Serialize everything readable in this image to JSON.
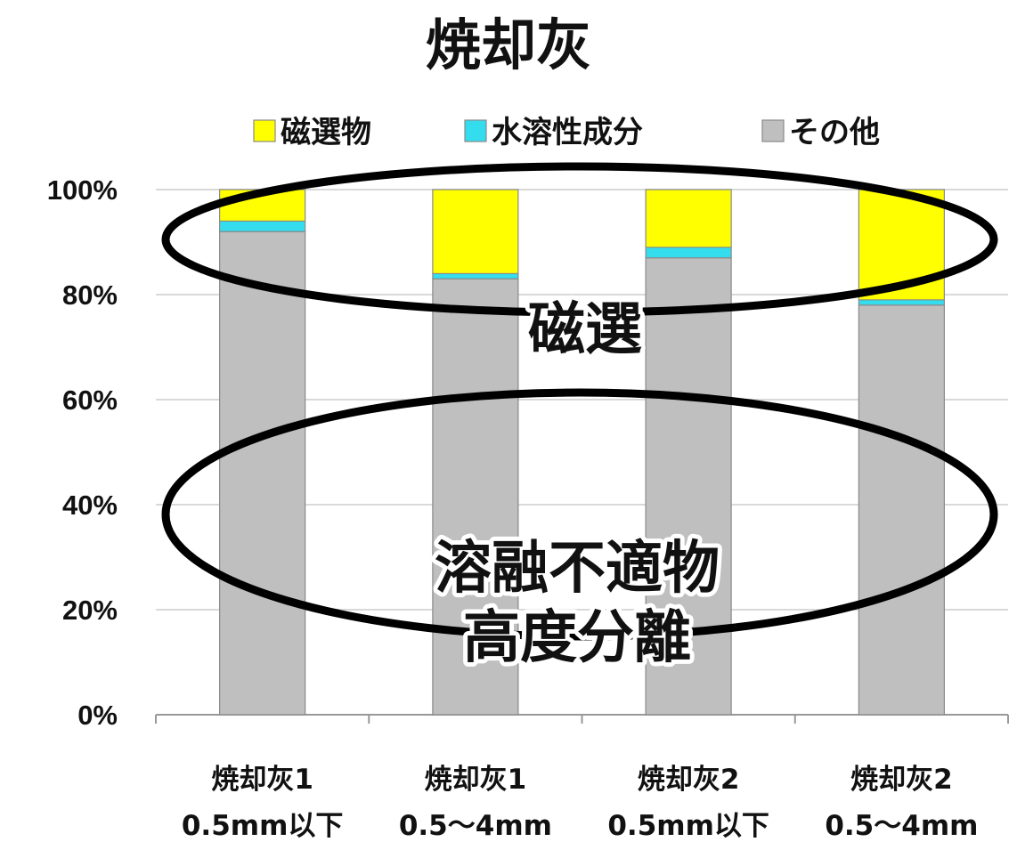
{
  "chart_data": {
    "type": "bar",
    "stacked": true,
    "percent": true,
    "title": "焼却灰",
    "categories": [
      [
        "焼却灰1",
        "0.5mm以下"
      ],
      [
        "焼却灰1",
        "0.5～4mm"
      ],
      [
        "焼却灰2",
        "0.5mm以下"
      ],
      [
        "焼却灰2",
        "0.5～4mm"
      ]
    ],
    "series": [
      {
        "name": "その他",
        "color": "#bfbfbf",
        "values": [
          92,
          83,
          87,
          78
        ]
      },
      {
        "name": "水溶性成分",
        "color": "#33ddee",
        "values": [
          2,
          1,
          2,
          1
        ]
      },
      {
        "name": "磁選物",
        "color": "#ffff00",
        "values": [
          6,
          16,
          11,
          21
        ]
      }
    ],
    "legend_order": [
      "磁選物",
      "水溶性成分",
      "その他"
    ],
    "legend_position": "top",
    "yticks": [
      "0%",
      "20%",
      "40%",
      "60%",
      "80%",
      "100%"
    ],
    "ylim": [
      0,
      100
    ],
    "grid": true,
    "annotations": [
      {
        "text": "磁選",
        "region": "upper"
      },
      {
        "text": "溶融不適物",
        "region": "lower"
      },
      {
        "text": "高度分離",
        "region": "lower"
      }
    ]
  }
}
